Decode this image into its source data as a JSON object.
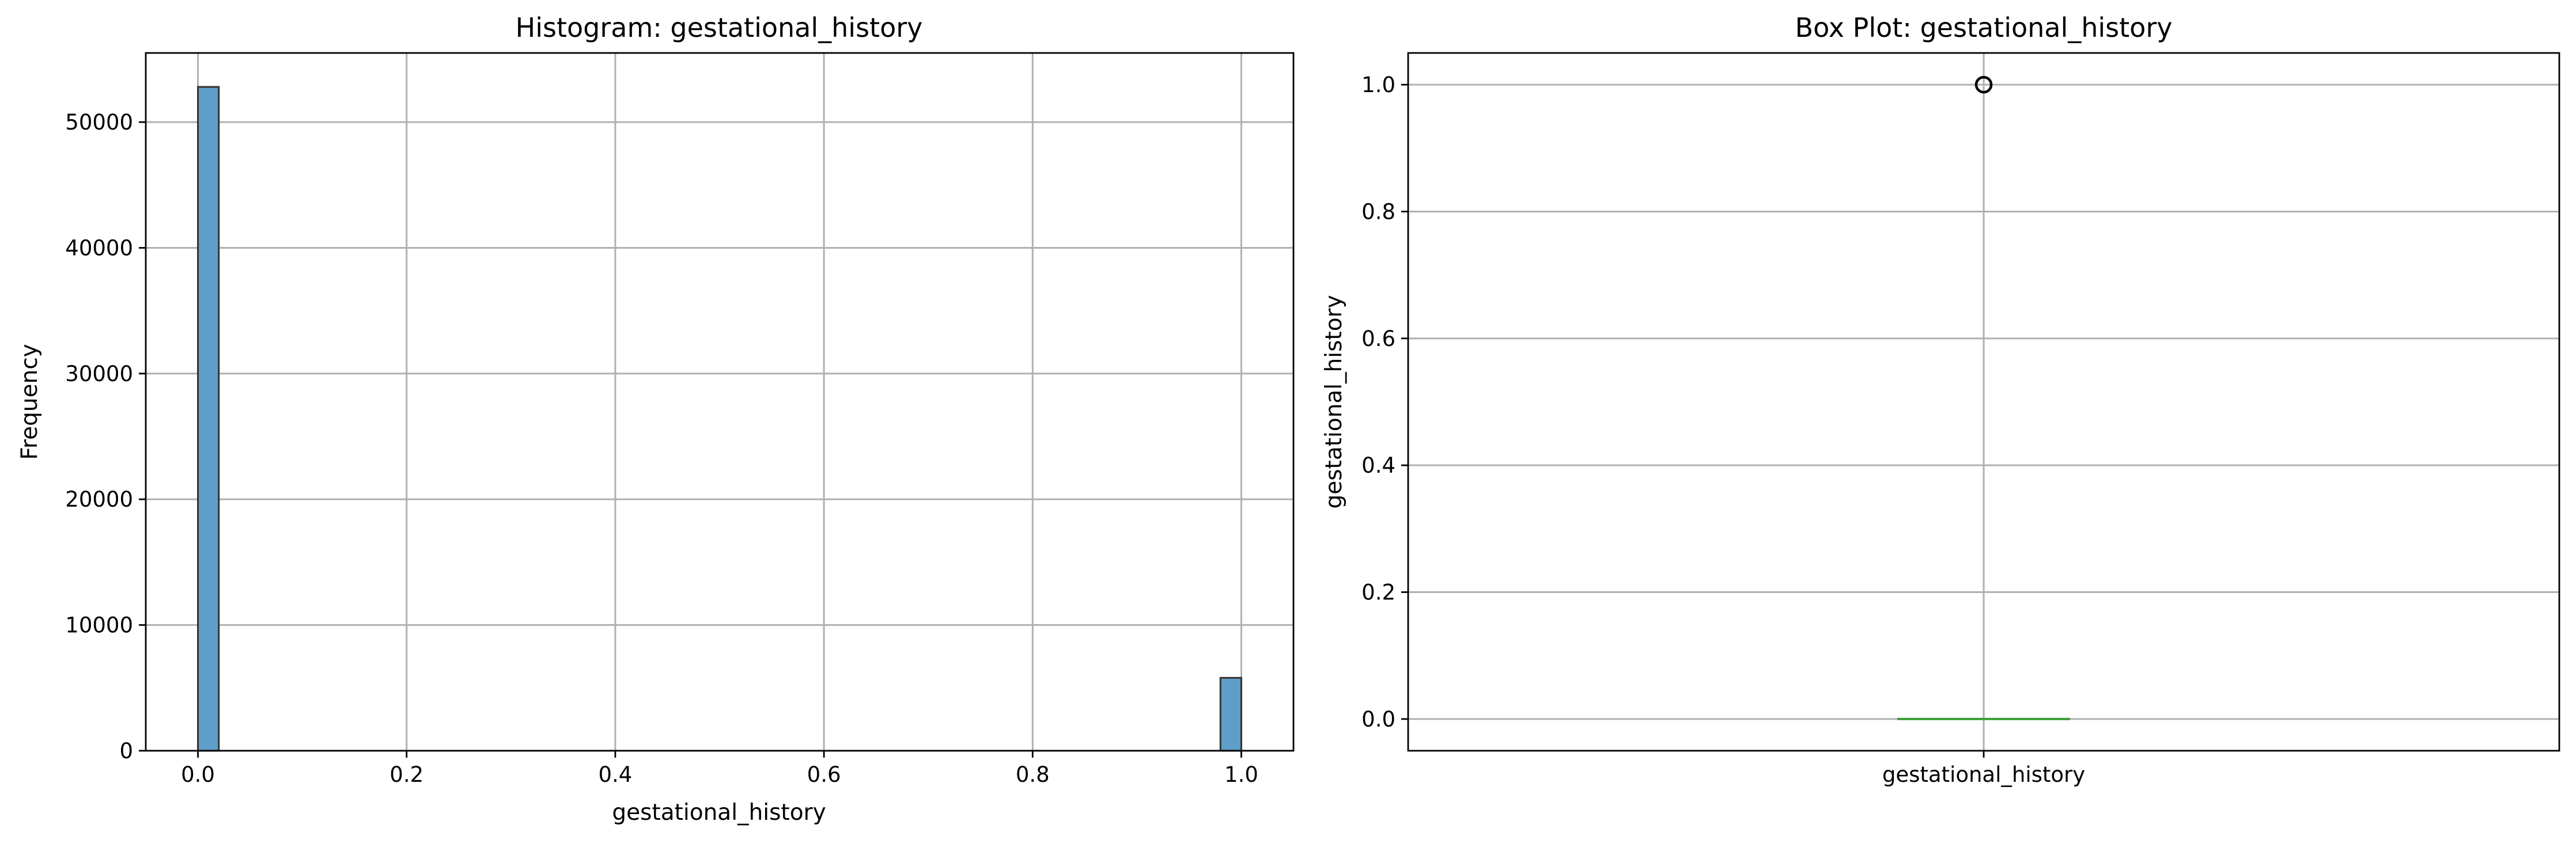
{
  "chart_data": [
    {
      "type": "bar",
      "title": "Histogram: gestational_history",
      "xlabel": "gestational_history",
      "ylabel": "Frequency",
      "xlim": [
        -0.05,
        1.05
      ],
      "ylim": [
        0,
        55500
      ],
      "xticks": [
        0.0,
        0.2,
        0.4,
        0.6,
        0.8,
        1.0
      ],
      "xtick_labels": [
        "0.0",
        "0.2",
        "0.4",
        "0.6",
        "0.8",
        "1.0"
      ],
      "yticks": [
        0,
        10000,
        20000,
        30000,
        40000,
        50000
      ],
      "ytick_labels": [
        "0",
        "10000",
        "20000",
        "30000",
        "40000",
        "50000"
      ],
      "bins": 50,
      "bars": [
        {
          "x0": 0.0,
          "x1": 0.02,
          "value": 52800
        },
        {
          "x0": 0.98,
          "x1": 1.0,
          "value": 5800
        }
      ],
      "grid": true,
      "bar_color": "#5f9ec8",
      "edge_color": "#333333"
    },
    {
      "type": "box",
      "title": "Box Plot: gestational_history",
      "ylabel": "gestational_history",
      "categories": [
        "gestational_history"
      ],
      "ylim": [
        -0.05,
        1.05
      ],
      "yticks": [
        0.0,
        0.2,
        0.4,
        0.6,
        0.8,
        1.0
      ],
      "ytick_labels": [
        "0.0",
        "0.2",
        "0.4",
        "0.6",
        "0.8",
        "1.0"
      ],
      "box": {
        "min": 0.0,
        "q1": 0.0,
        "median": 0.0,
        "q3": 0.0,
        "max": 0.0
      },
      "outliers": [
        1.0
      ],
      "grid": true,
      "median_color": "#3a9e3a"
    }
  ]
}
